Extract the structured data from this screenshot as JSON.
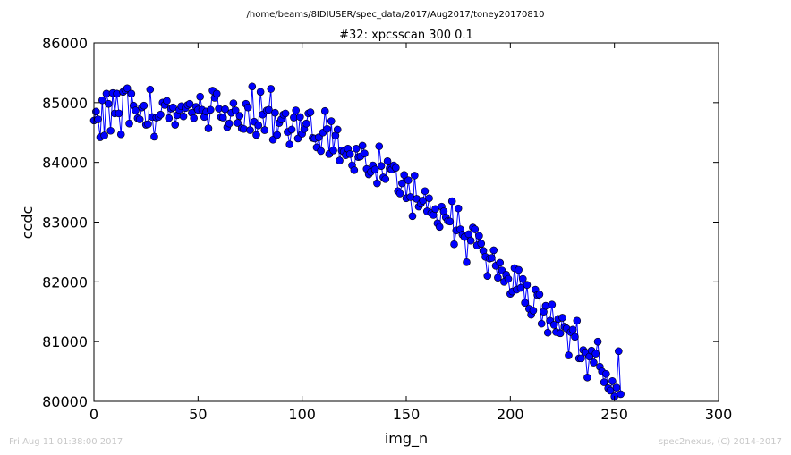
{
  "figure": {
    "path_title": "/home/beams/8IDIUSER/spec_data/2017/Aug2017/toney20170810",
    "timestamp": "Fri Aug 11 01:38:00 2017",
    "credit": "spec2nexus, (C) 2014-2017"
  },
  "colors": {
    "series": "#0000ff",
    "marker_edge": "#000000",
    "axes": "#000000",
    "footer_text": "#c8c8c8"
  },
  "chart_data": {
    "type": "line",
    "title": "#32: xpcsscan 300 0.1",
    "xlabel": "img_n",
    "ylabel": "ccdc",
    "xlim": [
      0,
      300
    ],
    "ylim": [
      80000,
      86000
    ],
    "xticks": [
      0,
      50,
      100,
      150,
      200,
      250,
      300
    ],
    "yticks": [
      80000,
      81000,
      82000,
      83000,
      84000,
      85000,
      86000
    ],
    "grid": false,
    "legend": "none",
    "series": [
      {
        "marker": "circle",
        "values": [
          84700,
          84850,
          84720,
          84420,
          85040,
          84450,
          85150,
          84980,
          84530,
          85160,
          84820,
          85150,
          84820,
          84470,
          85180,
          85210,
          85240,
          84650,
          85150,
          84950,
          84870,
          84740,
          84720,
          84920,
          84950,
          84630,
          84640,
          85220,
          84760,
          84430,
          84750,
          84760,
          84800,
          85000,
          84960,
          85030,
          84740,
          84900,
          84920,
          84630,
          84790,
          84880,
          84940,
          84770,
          84910,
          84960,
          84980,
          84830,
          84740,
          84930,
          84880,
          85100,
          84880,
          84760,
          84850,
          84570,
          84880,
          85200,
          85080,
          85150,
          84900,
          84760,
          84750,
          84890,
          84590,
          84650,
          84830,
          84990,
          84870,
          84660,
          84780,
          84570,
          84560,
          84980,
          84920,
          84540,
          85270,
          84680,
          84460,
          84620,
          85180,
          84800,
          84540,
          84870,
          84880,
          85230,
          84380,
          84830,
          84460,
          84660,
          84720,
          84800,
          84820,
          84510,
          84300,
          84550,
          84750,
          84870,
          84400,
          84760,
          84480,
          84560,
          84650,
          84820,
          84840,
          84410,
          84400,
          84250,
          84420,
          84190,
          84500,
          84860,
          84560,
          84140,
          84690,
          84200,
          84450,
          84550,
          84030,
          84200,
          84180,
          84120,
          84230,
          84140,
          83950,
          83870,
          84230,
          84090,
          84100,
          84280,
          84150,
          83890,
          83800,
          83840,
          83950,
          83880,
          83650,
          84270,
          83940,
          83750,
          83720,
          84020,
          83900,
          83880,
          83950,
          83910,
          83520,
          83480,
          83650,
          83790,
          83400,
          83700,
          83420,
          83100,
          83780,
          83390,
          83260,
          83310,
          83360,
          83520,
          83180,
          83400,
          83150,
          83120,
          83220,
          82980,
          82920,
          83260,
          83180,
          83080,
          83020,
          83010,
          83350,
          82630,
          82860,
          83230,
          82880,
          82790,
          82750,
          82330,
          82800,
          82690,
          82910,
          82880,
          82610,
          82770,
          82640,
          82520,
          82420,
          82100,
          82390,
          82400,
          82530,
          82270,
          82070,
          82320,
          82190,
          82000,
          82120,
          82050,
          81800,
          81840,
          82230,
          81870,
          82200,
          81900,
          82050,
          81650,
          81950,
          81550,
          81450,
          81520,
          81870,
          81780,
          81790,
          81300,
          81500,
          81600,
          81150,
          81350,
          81620,
          81280,
          81160,
          81380,
          81140,
          81400,
          81250,
          81220,
          80770,
          81160,
          81200,
          81080,
          81350,
          80720,
          80720,
          80860,
          80820,
          80400,
          80750,
          80850,
          80650,
          80800,
          81000,
          80580,
          80500,
          80320,
          80460,
          80220,
          80180,
          80340,
          80080,
          80230,
          80840,
          80120
        ]
      }
    ]
  }
}
